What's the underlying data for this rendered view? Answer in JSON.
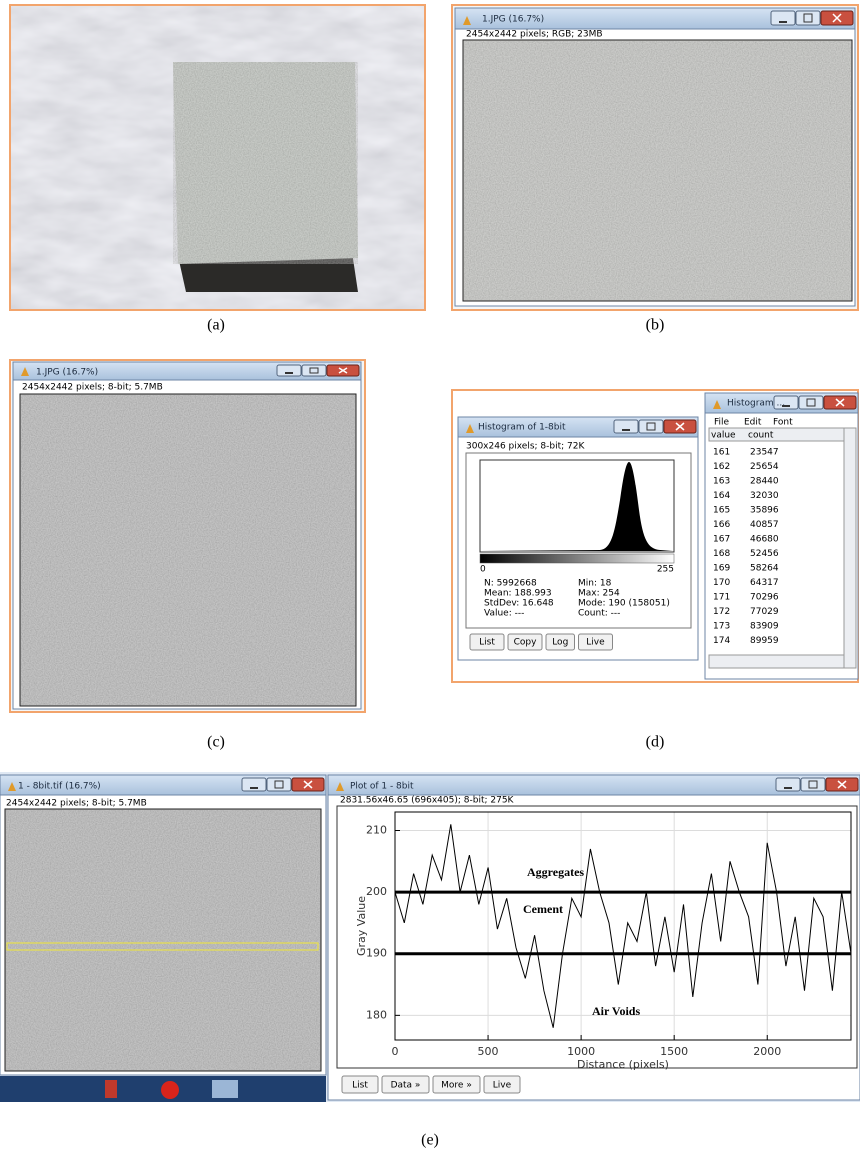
{
  "panels": {
    "a": {
      "label": "(a)"
    },
    "b": {
      "window_title": "1.JPG (16.7%)",
      "info": "2454x2442 pixels; RGB; 23MB",
      "label": "(b)"
    },
    "c": {
      "window_title": "1.JPG (16.7%)",
      "info": "2454x2442 pixels; 8-bit; 5.7MB",
      "label": "(c)"
    },
    "d": {
      "histogram_window": {
        "title": "Histogram of 1-8bit",
        "info": "300x246 pixels; 8-bit; 72K",
        "axis_min": "0",
        "axis_max": "255",
        "stats_left": [
          "N: 5992668",
          "Mean: 188.993",
          "StdDev: 16.648",
          "Value: ---"
        ],
        "stats_right": [
          "Min: 18",
          "Max: 254",
          "Mode: 190 (158051)",
          "Count: ---"
        ],
        "buttons": [
          "List",
          "Copy",
          "Log",
          "Live"
        ]
      },
      "table_window": {
        "title": "Histogram ...",
        "menu": [
          "File",
          "Edit",
          "Font"
        ],
        "columns": [
          "value",
          "count"
        ],
        "rows": [
          [
            161,
            23547
          ],
          [
            162,
            25654
          ],
          [
            163,
            28440
          ],
          [
            164,
            32030
          ],
          [
            165,
            35896
          ],
          [
            166,
            40857
          ],
          [
            167,
            46680
          ],
          [
            168,
            52456
          ],
          [
            169,
            58264
          ],
          [
            170,
            64317
          ],
          [
            171,
            70296
          ],
          [
            172,
            77029
          ],
          [
            173,
            83909
          ],
          [
            174,
            89959
          ]
        ]
      },
      "label": "(d)"
    },
    "e": {
      "image_window": {
        "title": "1 - 8bit.tif (16.7%)",
        "info": "2454x2442 pixels; 8-bit; 5.7MB"
      },
      "plot_window": {
        "title": "Plot of 1 - 8bit",
        "info": "2831.56x46.65  (696x405); 8-bit; 275K",
        "buttons": [
          "List",
          "Data »",
          "More »",
          "Live"
        ],
        "chart_data": {
          "type": "line",
          "x_label": "Distance (pixels)",
          "y_label": "Gray Value",
          "x": [
            0,
            50,
            100,
            150,
            200,
            250,
            300,
            350,
            400,
            450,
            500,
            550,
            600,
            650,
            700,
            750,
            800,
            850,
            900,
            950,
            1000,
            1050,
            1100,
            1150,
            1200,
            1250,
            1300,
            1350,
            1400,
            1450,
            1500,
            1550,
            1600,
            1650,
            1700,
            1750,
            1800,
            1850,
            1900,
            1950,
            2000,
            2050,
            2100,
            2150,
            2200,
            2250,
            2300,
            2350,
            2400,
            2450
          ],
          "values": [
            200,
            195,
            203,
            198,
            206,
            202,
            211,
            200,
            206,
            198,
            204,
            194,
            199,
            191,
            186,
            193,
            184,
            178,
            190,
            199,
            196,
            207,
            200,
            195,
            185,
            195,
            192,
            200,
            188,
            196,
            187,
            198,
            183,
            195,
            203,
            192,
            205,
            200,
            196,
            185,
            208,
            200,
            188,
            196,
            184,
            199,
            196,
            184,
            200,
            190
          ],
          "color": "#000000",
          "xlim": [
            0,
            2450
          ],
          "ylim": [
            176,
            213
          ],
          "xticks": [
            0,
            500,
            1000,
            1500,
            2000
          ],
          "yticks": [
            180,
            190,
            200,
            210
          ],
          "grid": true,
          "reference_lines": [
            200,
            190
          ],
          "annotations": [
            {
              "text": "Aggregates",
              "color": "#d9232e"
            },
            {
              "text": "Cement",
              "color": "#d9232e"
            },
            {
              "text": "Air Voids",
              "color": "#111111"
            }
          ]
        }
      },
      "label": "(e)"
    }
  }
}
